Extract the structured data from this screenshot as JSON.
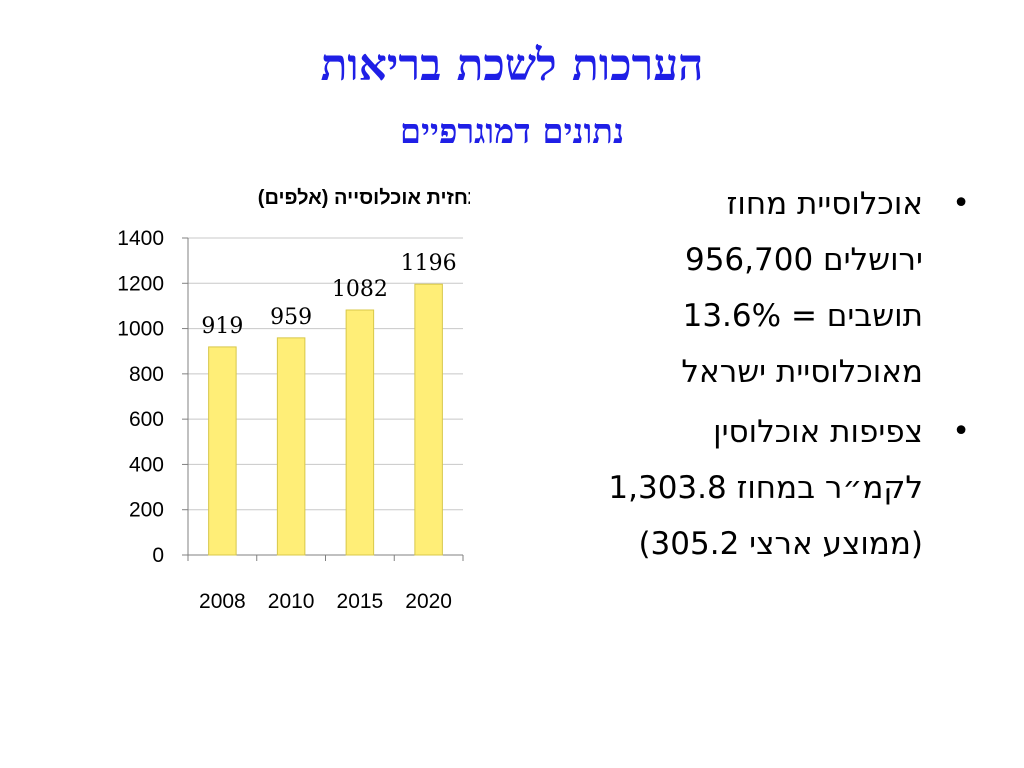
{
  "slide": {
    "title": "הערכות לשכת בריאות",
    "subtitle": "נתונים דמוגרפיים"
  },
  "bullets": [
    {
      "lines": [
        "אוכלוסיית מחוז",
        "ירושלים 956,700",
        "תושבים = 13.6%",
        "מאוכלוסיית ישראל"
      ]
    },
    {
      "lines": [
        "צפיפות אוכלוסין",
        "לקמ״ר במחוז 1,303.8",
        "(ממוצע ארצי 305.2)"
      ]
    }
  ],
  "chart_data": {
    "type": "bar",
    "title": "תחזית אוכלוסייה (אלפים)",
    "categories": [
      "2008",
      "2010",
      "2015",
      "2020"
    ],
    "values": [
      919,
      959,
      1082,
      1196
    ],
    "ylim": [
      0,
      1400
    ],
    "yticks": [
      0,
      200,
      400,
      600,
      800,
      1000,
      1200,
      1400
    ],
    "grid": true,
    "legend": "none",
    "bar_color": "#ffee77",
    "bar_edge_color": "#d8c84a"
  }
}
